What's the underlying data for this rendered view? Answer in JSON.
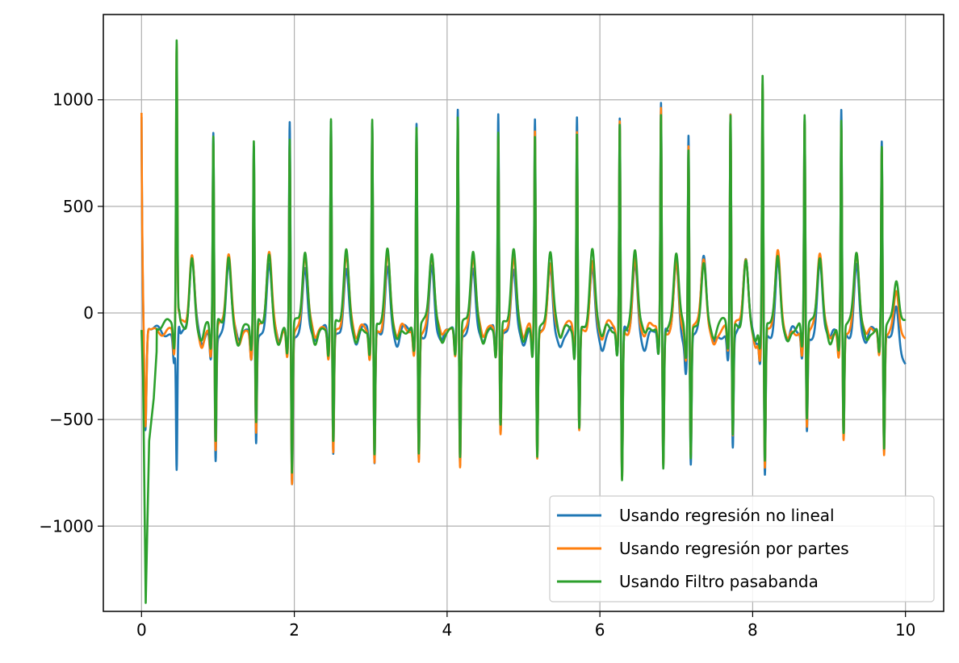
{
  "chart_data": {
    "type": "line",
    "title": "",
    "xlabel": "",
    "ylabel": "",
    "xlim": [
      -0.5,
      10.5
    ],
    "ylim": [
      -1400,
      1400
    ],
    "grid": true,
    "legend_position": "lower-right",
    "x_ticks": [
      0,
      2,
      4,
      6,
      8,
      10
    ],
    "x_tick_labels": [
      "0",
      "2",
      "4",
      "6",
      "8",
      "10"
    ],
    "y_ticks": [
      -1000,
      -500,
      0,
      500,
      1000
    ],
    "y_tick_labels": [
      "−1000",
      "−500",
      "0",
      "500",
      "1000"
    ],
    "beats": [
      {
        "t": 0.46,
        "s": [
          -700,
          1260,
          -30
        ]
      },
      {
        "t": 0.94,
        "s": [
          880,
          820,
          -650
        ]
      },
      {
        "t": 1.47,
        "s": [
          820,
          790,
          -570
        ]
      },
      {
        "t": 1.94,
        "s": [
          900,
          830,
          -780
        ]
      },
      {
        "t": 2.48,
        "s": [
          910,
          920,
          -640
        ]
      },
      {
        "t": 3.02,
        "s": [
          900,
          910,
          -700
        ]
      },
      {
        "t": 3.6,
        "s": [
          880,
          880,
          -680
        ]
      },
      {
        "t": 4.14,
        "s": [
          950,
          940,
          -700
        ]
      },
      {
        "t": 4.67,
        "s": [
          930,
          870,
          -550
        ]
      },
      {
        "t": 5.15,
        "s": [
          885,
          870,
          -670
        ]
      },
      {
        "t": 5.7,
        "s": [
          910,
          870,
          -550
        ]
      },
      {
        "t": 6.26,
        "s": [
          900,
          905,
          -790
        ]
      },
      {
        "t": 6.8,
        "s": [
          960,
          960,
          -720
        ]
      },
      {
        "t": 7.16,
        "s": [
          880,
          800,
          -690
        ]
      },
      {
        "t": 7.71,
        "s": [
          960,
          930,
          -600
        ]
      },
      {
        "t": 8.13,
        "s": [
          1080,
          1090,
          -740
        ]
      },
      {
        "t": 8.68,
        "s": [
          920,
          920,
          -530
        ]
      },
      {
        "t": 9.16,
        "s": [
          950,
          900,
          -590
        ]
      },
      {
        "t": 9.69,
        "s": [
          790,
          795,
          -650
        ]
      }
    ],
    "series": [
      {
        "name": "Usando regresión no lineal",
        "color": "#1f77b4",
        "start": 920,
        "end": -240,
        "baseline": -90
      },
      {
        "name": "Usando regresión por partes",
        "color": "#ff7f0e",
        "start": 940,
        "end": -120,
        "baseline": -70
      },
      {
        "name": "Usando Filtro pasabanda",
        "color": "#2ca02c",
        "start": -80,
        "end": -30,
        "baseline": -60
      }
    ],
    "green_start_dip": [
      {
        "x": 0.02,
        "y": -300
      },
      {
        "x": 0.055,
        "y": -1360
      },
      {
        "x": 0.1,
        "y": -600
      },
      {
        "x": 0.16,
        "y": -400
      },
      {
        "x": 0.22,
        "y": -50
      }
    ]
  }
}
